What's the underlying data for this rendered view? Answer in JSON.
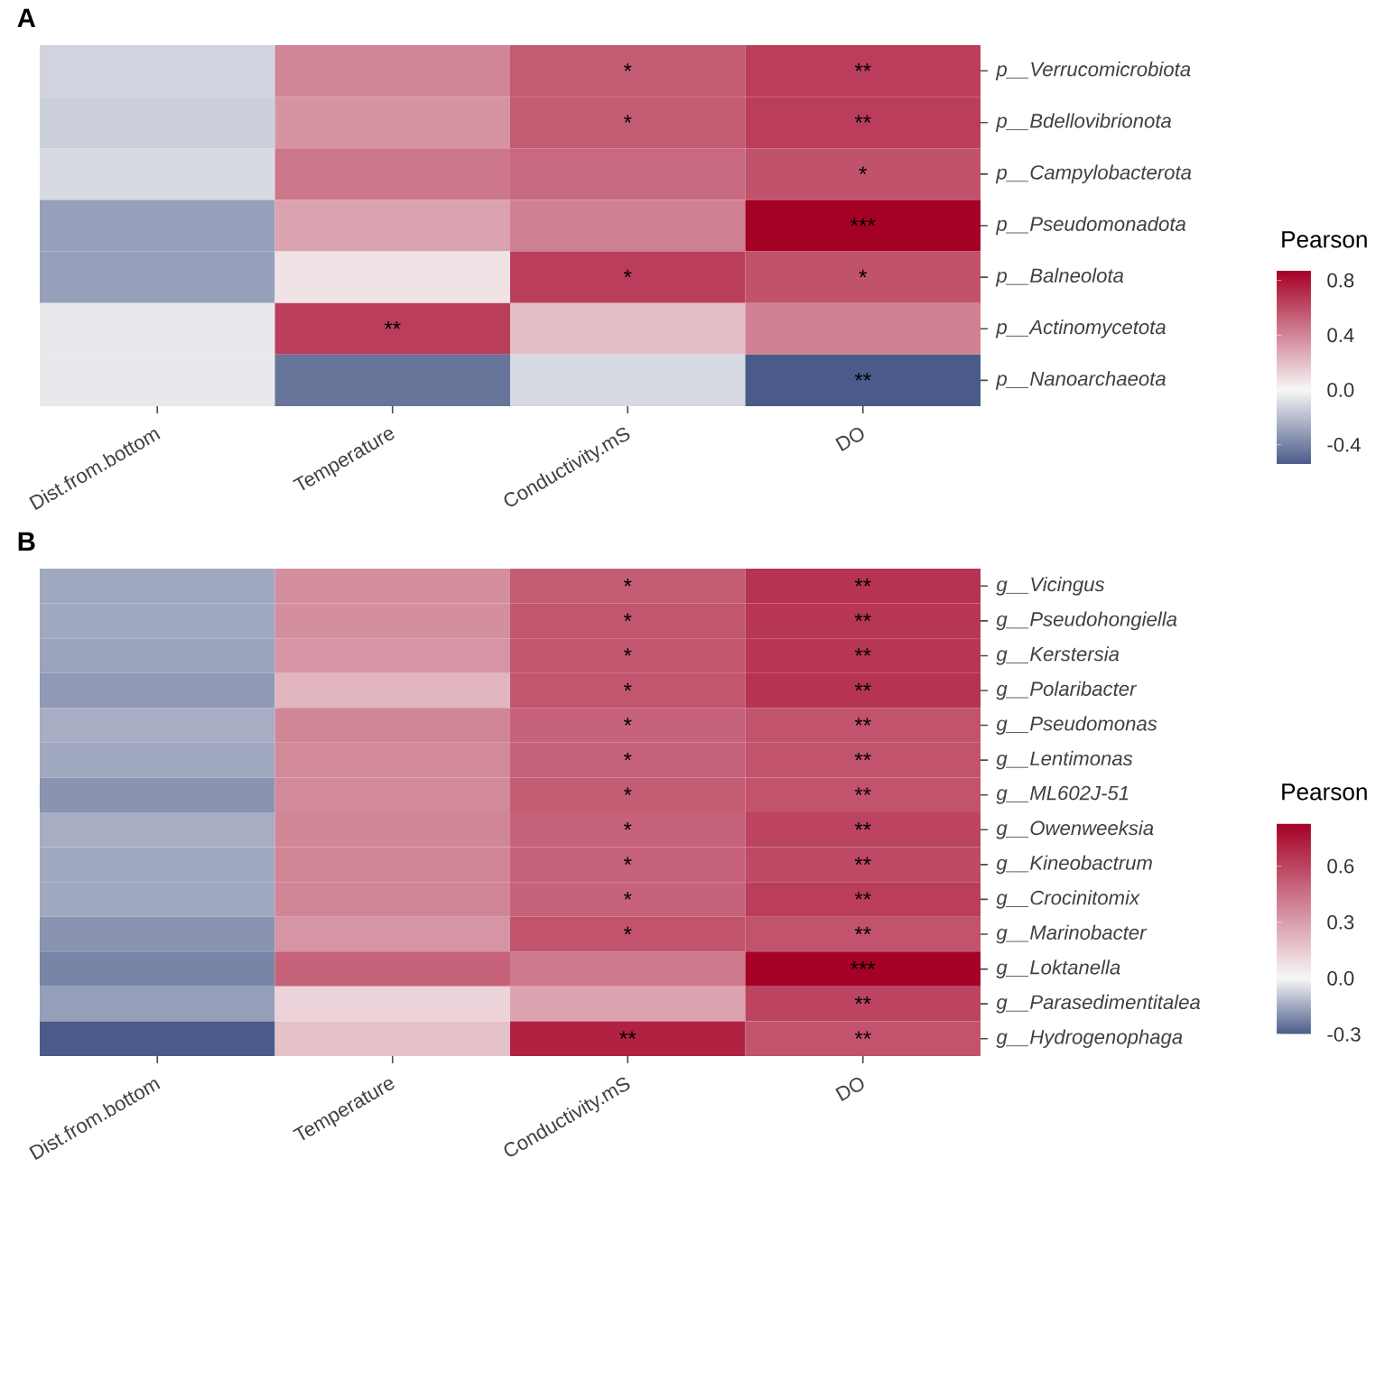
{
  "chart_data": [
    {
      "type": "heatmap",
      "title": "A",
      "clabel": "Pearson",
      "categories": [
        "Dist.from.bottom",
        "Temperature",
        "Conductivity.mS",
        "DO"
      ],
      "y_categories": [
        "p__Verrucomicrobiota",
        "p__Bdellovibrionota",
        "p__Campylobacterota",
        "p__Pseudomonadota",
        "p__Balneolota",
        "p__Actinomycetota",
        "p__Nanoarchaeota"
      ],
      "cells": [
        [
          -0.12,
          0.4,
          0.55,
          0.65
        ],
        [
          -0.14,
          0.35,
          0.55,
          0.65
        ],
        [
          -0.1,
          0.45,
          0.5,
          0.58
        ],
        [
          -0.3,
          0.3,
          0.42,
          0.87
        ],
        [
          -0.3,
          0.07,
          0.65,
          0.58
        ],
        [
          -0.05,
          0.65,
          0.2,
          0.42
        ],
        [
          -0.05,
          -0.45,
          -0.1,
          -0.54
        ]
      ],
      "cell_labels": [
        [
          null,
          null,
          "*",
          "**"
        ],
        [
          null,
          null,
          "*",
          "**"
        ],
        [
          null,
          null,
          null,
          "*"
        ],
        [
          null,
          null,
          null,
          "***"
        ],
        [
          null,
          null,
          "*",
          "*"
        ],
        [
          null,
          "**",
          null,
          null
        ],
        [
          null,
          null,
          null,
          "**"
        ]
      ],
      "clim": [
        -0.54,
        0.87
      ],
      "cticks": [
        -0.4,
        {
          "value": 0,
          "label": "0.0"
        },
        0.4,
        0.8
      ]
    },
    {
      "type": "heatmap",
      "title": "B",
      "clabel": "Pearson",
      "categories": [
        "Dist.from.bottom",
        "Temperature",
        "Conductivity.mS",
        "DO"
      ],
      "y_categories": [
        "g__Vicingus",
        "g__Pseudohongiella",
        "g__Kerstersia",
        "g__Polaribacter",
        "g__Pseudomonas",
        "g__Lentimonas",
        "g__ML602J-51",
        "g__Owenweeksia",
        "g__Kineobactrum",
        "g__Crocinitomix",
        "g__Marinobacter",
        "g__Loktanella",
        "g__Parasedimentitalea",
        "g__Hydrogenophaga"
      ],
      "cells": [
        [
          -0.15,
          0.35,
          0.52,
          0.66
        ],
        [
          -0.15,
          0.35,
          0.54,
          0.65
        ],
        [
          -0.16,
          0.33,
          0.54,
          0.65
        ],
        [
          -0.18,
          0.22,
          0.54,
          0.66
        ],
        [
          -0.14,
          0.38,
          0.5,
          0.55
        ],
        [
          -0.15,
          0.37,
          0.5,
          0.55
        ],
        [
          -0.19,
          0.37,
          0.52,
          0.55
        ],
        [
          -0.14,
          0.38,
          0.5,
          0.6
        ],
        [
          -0.15,
          0.38,
          0.5,
          0.58
        ],
        [
          -0.15,
          0.38,
          0.5,
          0.62
        ],
        [
          -0.19,
          0.33,
          0.55,
          0.55
        ],
        [
          -0.22,
          0.5,
          0.42,
          0.83
        ],
        [
          -0.17,
          0.12,
          0.28,
          0.6
        ],
        [
          -0.3,
          0.18,
          0.72,
          0.55
        ]
      ],
      "cell_labels": [
        [
          null,
          null,
          "*",
          "**"
        ],
        [
          null,
          null,
          "*",
          "**"
        ],
        [
          null,
          null,
          "*",
          "**"
        ],
        [
          null,
          null,
          "*",
          "**"
        ],
        [
          null,
          null,
          "*",
          "**"
        ],
        [
          null,
          null,
          "*",
          "**"
        ],
        [
          null,
          null,
          "*",
          "**"
        ],
        [
          null,
          null,
          "*",
          "**"
        ],
        [
          null,
          null,
          "*",
          "**"
        ],
        [
          null,
          null,
          "*",
          "**"
        ],
        [
          null,
          null,
          "*",
          "**"
        ],
        [
          null,
          null,
          null,
          "***"
        ],
        [
          null,
          null,
          null,
          "**"
        ],
        [
          null,
          null,
          "**",
          "**"
        ]
      ],
      "clim": [
        -0.3,
        0.83
      ],
      "cticks": [
        -0.3,
        {
          "value": 0,
          "label": "0.0"
        },
        0.3,
        0.6
      ]
    }
  ]
}
